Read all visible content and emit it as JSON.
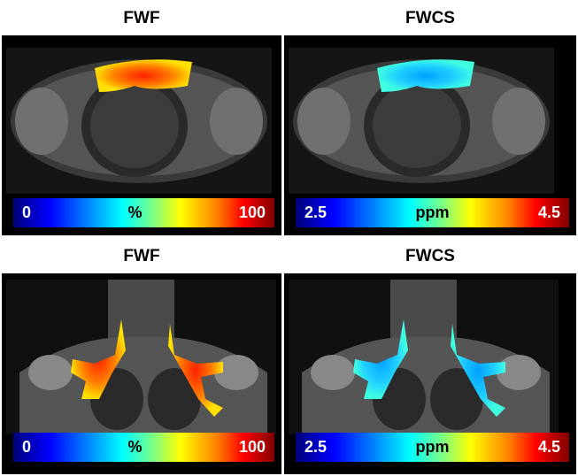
{
  "panels": [
    {
      "title": "FWF",
      "colorbar": {
        "min": "0",
        "unit": "%",
        "max": "100"
      }
    },
    {
      "title": "FWCS",
      "colorbar": {
        "min": "2.5",
        "unit": "ppm",
        "max": "4.5"
      }
    },
    {
      "title": "FWF",
      "colorbar": {
        "min": "0",
        "unit": "%",
        "max": "100"
      }
    },
    {
      "title": "FWCS",
      "colorbar": {
        "min": "2.5",
        "unit": "ppm",
        "max": "4.5"
      }
    }
  ]
}
